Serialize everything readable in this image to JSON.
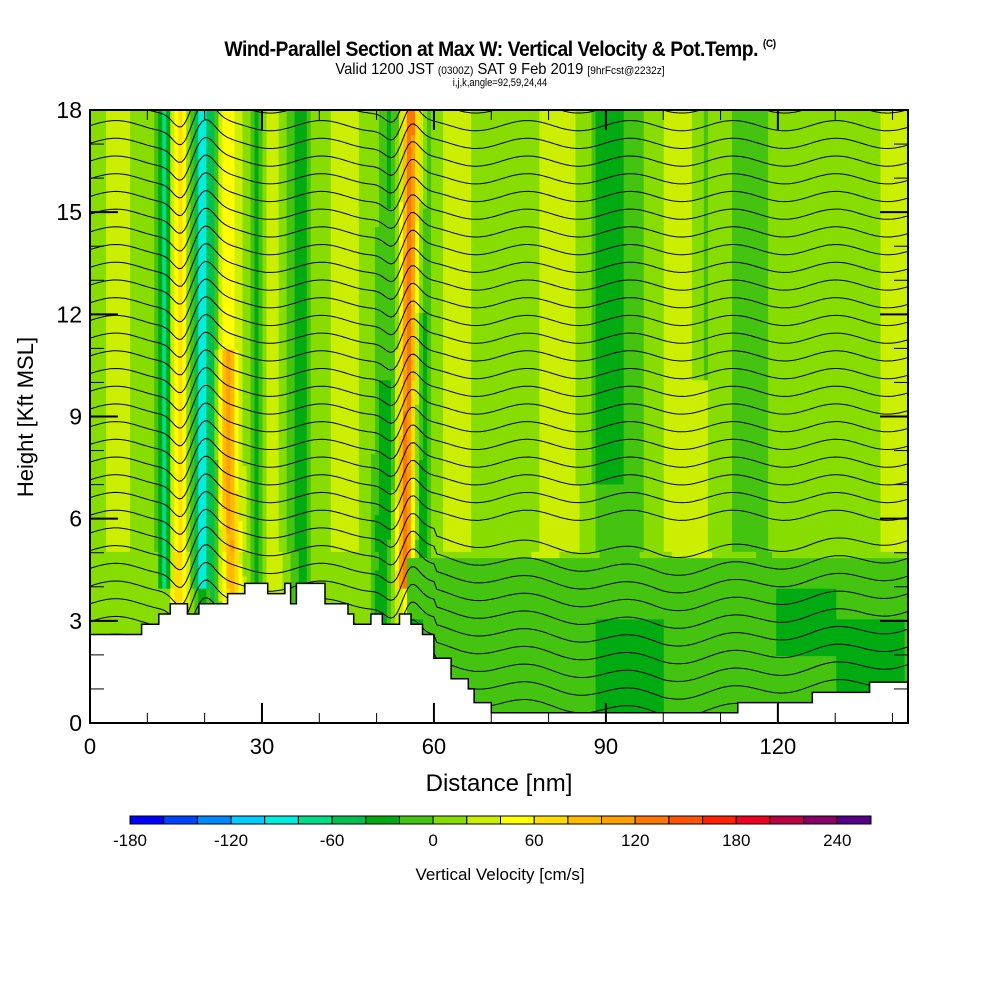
{
  "header": {
    "title": "Wind-Parallel Section at Max W: Vertical Velocity & Pot.Temp.",
    "copyright": "(C)",
    "valid_prefix": "Valid 1200 JST",
    "valid_utc": "(0300Z)",
    "valid_date": "SAT 9 Feb 2019",
    "forecast": "[9hrFcst@2232z]",
    "indices": "i,j,k,angle=92,59,24,44"
  },
  "chart_data": {
    "type": "heatmap",
    "title": "Wind-Parallel Section at Max W: Vertical Velocity & Pot.Temp.",
    "xlabel": "Distance [nm]",
    "ylabel": "Height [Kft MSL]",
    "xlim": [
      0,
      142.7
    ],
    "ylim": [
      0,
      18
    ],
    "xticks": [
      0,
      30,
      60,
      90,
      120
    ],
    "yticks": [
      0,
      3,
      6,
      9,
      12,
      15,
      18
    ],
    "grid": false,
    "colorbar": {
      "label": "Vertical Velocity [cm/s]",
      "placement": "bottom",
      "bounds": [
        -180,
        -160,
        -140,
        -120,
        -100,
        -80,
        -60,
        -40,
        -20,
        0,
        20,
        40,
        60,
        80,
        100,
        120,
        140,
        160,
        180,
        200,
        220,
        240,
        260
      ],
      "tick_labels": [
        "-180",
        "-120",
        "-60",
        "0",
        "60",
        "120",
        "180",
        "240"
      ],
      "tick_values": [
        -180,
        -120,
        -60,
        0,
        60,
        120,
        180,
        240
      ],
      "colors": [
        "#0000ff",
        "#0044ff",
        "#0088ff",
        "#00ccff",
        "#00eedd",
        "#00dd88",
        "#00c050",
        "#00aa11",
        "#44c411",
        "#88dd00",
        "#ccee00",
        "#ffff00",
        "#ffdd00",
        "#ffbb00",
        "#ffa000",
        "#ff7700",
        "#ff5500",
        "#ff2200",
        "#ee0022",
        "#bb0044",
        "#880066",
        "#550088"
      ]
    },
    "overlay": "potential temperature contours (black lines)",
    "terrain_profile": {
      "description": "terrain (white, no data) along section, height kft",
      "x": [
        0,
        7,
        9,
        10,
        12,
        13,
        14,
        16,
        17,
        19,
        22,
        24,
        26,
        27,
        28,
        30,
        31,
        32,
        34,
        35,
        36,
        40,
        41,
        42,
        45,
        46,
        48,
        49,
        50,
        51,
        52,
        54,
        55,
        56,
        58,
        60,
        62,
        63,
        65,
        66,
        67,
        70,
        75,
        90,
        100,
        112,
        113,
        125,
        126,
        135,
        136,
        142.7
      ],
      "y": [
        2.6,
        2.6,
        2.9,
        2.9,
        3.2,
        3.2,
        3.5,
        3.5,
        3.2,
        3.5,
        3.5,
        3.8,
        3.8,
        4.1,
        4.1,
        4.1,
        3.8,
        3.8,
        4.1,
        3.5,
        4.1,
        4.1,
        3.5,
        3.5,
        3.2,
        2.9,
        2.9,
        3.2,
        3.2,
        2.9,
        2.9,
        3.2,
        3.2,
        2.9,
        2.6,
        1.9,
        1.9,
        1.3,
        1.3,
        1.0,
        0.6,
        0.3,
        0.3,
        0.3,
        0.3,
        0.3,
        0.6,
        0.6,
        0.9,
        0.9,
        1.2,
        1.2
      ]
    },
    "features": [
      {
        "name": "updraft/downdraft couplet",
        "x_range": [
          13,
          22
        ],
        "y_range": [
          3.5,
          18
        ],
        "w_range": [
          -100,
          80
        ]
      },
      {
        "name": "strong updraft band",
        "x_range": [
          53,
          58
        ],
        "y_range": [
          4,
          18
        ],
        "w_range": [
          60,
          140
        ]
      },
      {
        "name": "weak downdraft layer",
        "x_range": [
          55,
          142
        ],
        "y_range": [
          0.3,
          4.5
        ],
        "w_range": [
          -40,
          0
        ]
      },
      {
        "name": "near-neutral upper region",
        "x_range": [
          65,
          142
        ],
        "y_range": [
          4.5,
          18
        ],
        "w_range": [
          -20,
          40
        ]
      }
    ]
  }
}
